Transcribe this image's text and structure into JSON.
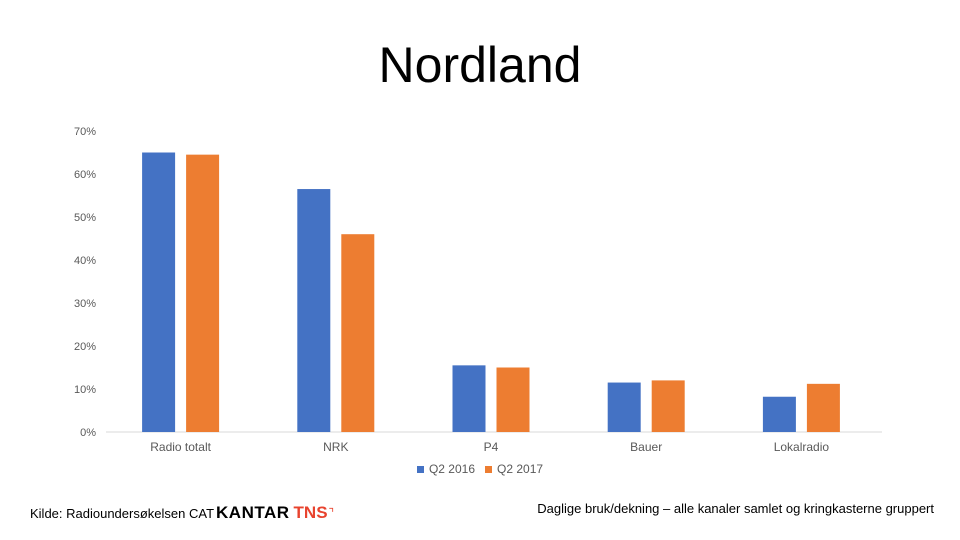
{
  "title": "Nordland",
  "colors": {
    "series_1": "#4472C4",
    "series_2": "#ED7D31",
    "grid": "#D9D9D9",
    "axis_text": "#595959"
  },
  "chart_data": {
    "type": "bar",
    "categories": [
      "Radio totalt",
      "NRK",
      "P4",
      "Bauer",
      "Lokalradio"
    ],
    "series": [
      {
        "name": "Q2 2016",
        "values": [
          65,
          56.5,
          15.5,
          11.5,
          8.2
        ]
      },
      {
        "name": "Q2 2017",
        "values": [
          64.5,
          46,
          15,
          12,
          11.2
        ]
      }
    ],
    "ylim": [
      0,
      70
    ],
    "yticks": [
      "0%",
      "10%",
      "20%",
      "30%",
      "40%",
      "50%",
      "60%",
      "70%"
    ],
    "ytick_values": [
      0,
      10,
      20,
      30,
      40,
      50,
      60,
      70
    ],
    "grid": false,
    "legend_position": "bottom"
  },
  "footer": {
    "source_text": "Kilde: Radioundersøkelsen CAT",
    "logo_kantar": "KANTAR",
    "logo_tns": "TNS",
    "note": "Daglige bruk/dekning – alle kanaler samlet og kringkasterne gruppert"
  }
}
